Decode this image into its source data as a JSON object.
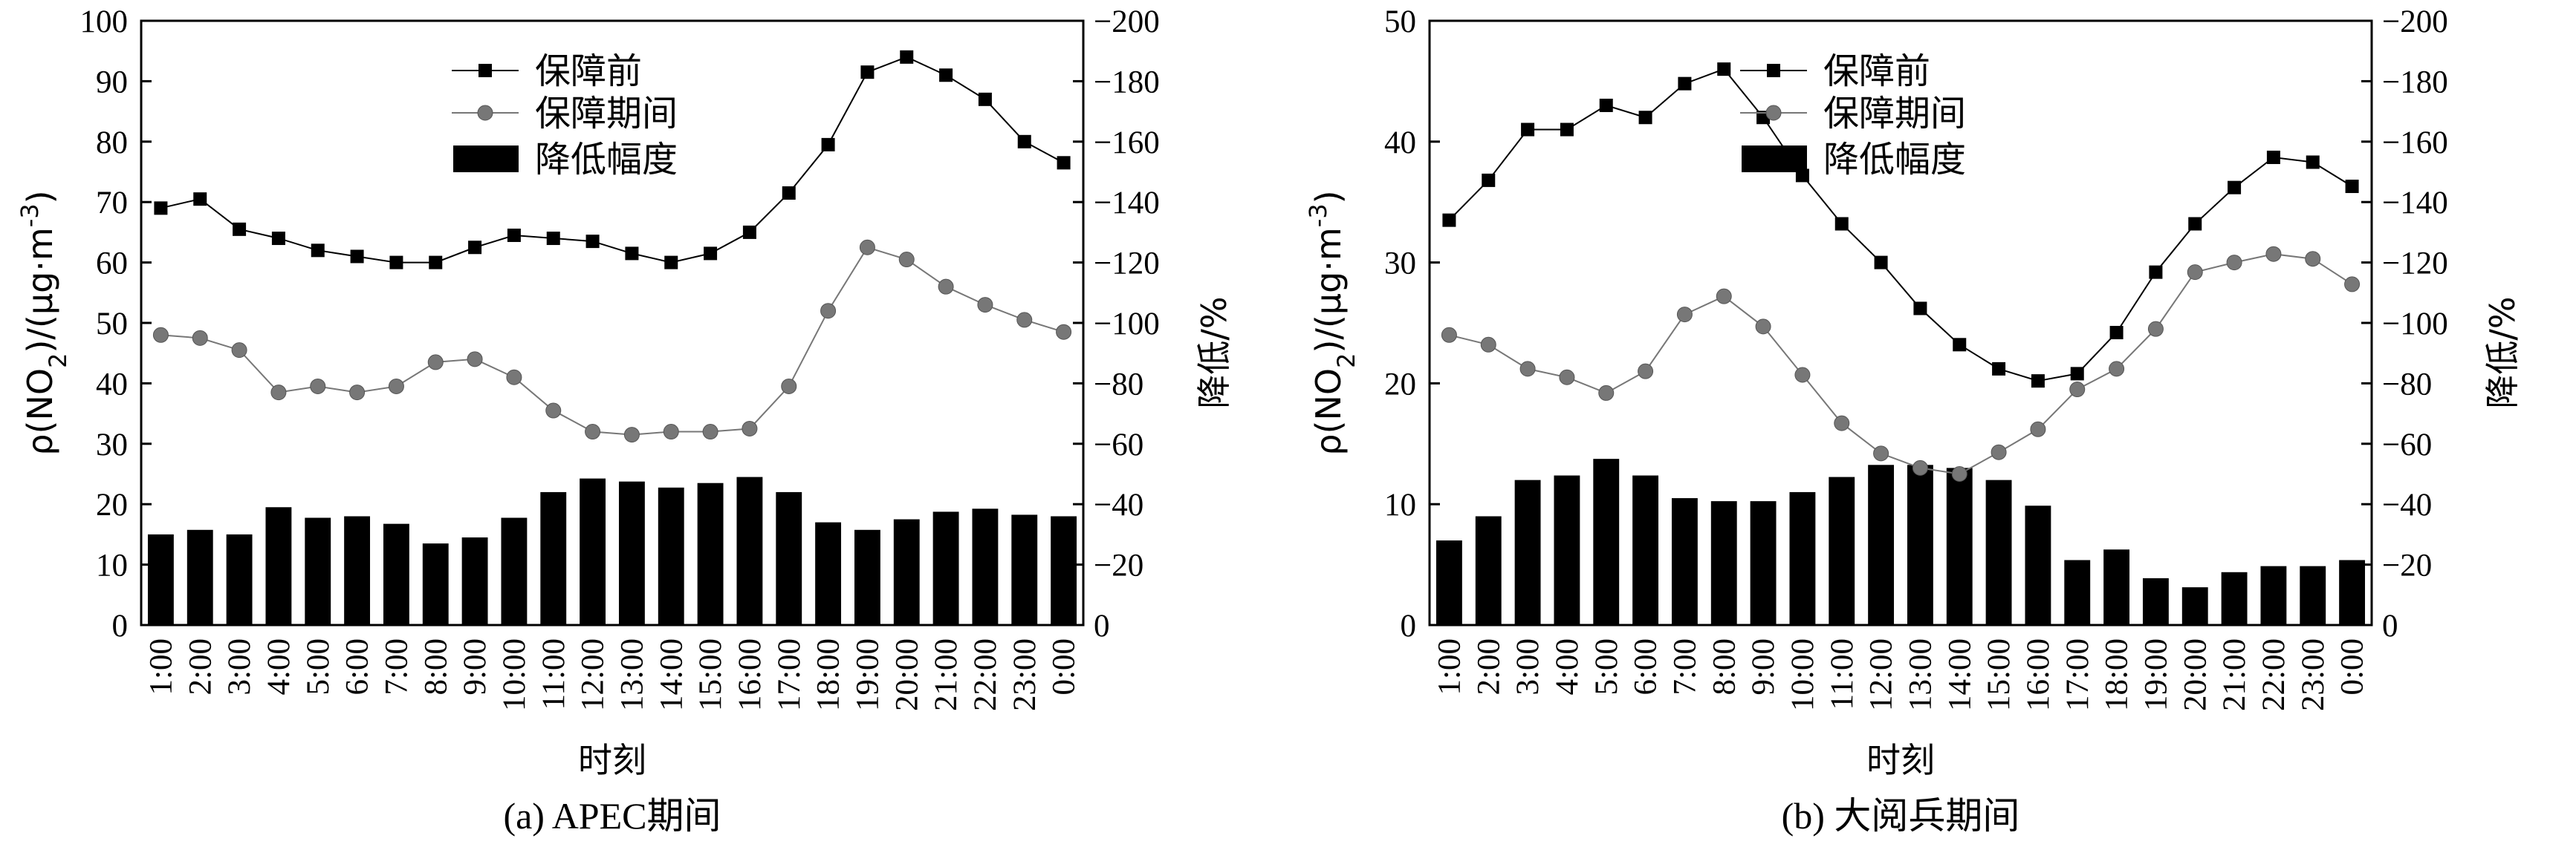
{
  "legend_labels": [
    "保障前",
    "保障期间",
    "降低幅度"
  ],
  "chart_data": [
    {
      "type": "bar",
      "caption": "(a) APEC期间",
      "xlabel": "时刻",
      "ylabel_left": "ρ(NO₂)/(μg·m⁻³)",
      "ylabel_right": "降低/%",
      "categories": [
        "1:00",
        "2:00",
        "3:00",
        "4:00",
        "5:00",
        "6:00",
        "7:00",
        "8:00",
        "9:00",
        "10:00",
        "11:00",
        "12:00",
        "13:00",
        "14:00",
        "15:00",
        "16:00",
        "17:00",
        "18:00",
        "19:00",
        "20:00",
        "21:00",
        "22:00",
        "23:00",
        "0:00"
      ],
      "ylim": [
        0,
        100
      ],
      "yticks": [
        0,
        10,
        20,
        30,
        40,
        50,
        60,
        70,
        80,
        90,
        100
      ],
      "y2lim": [
        0,
        -200
      ],
      "y2ticks": [
        0,
        -20,
        -40,
        -60,
        -80,
        -100,
        -120,
        -140,
        -160,
        -180,
        -200
      ],
      "series": [
        {
          "name": "保障前",
          "kind": "line",
          "marker": "square",
          "color": "#000000",
          "values": [
            69,
            70.5,
            65.5,
            64,
            62,
            61,
            60,
            60,
            62.5,
            64.5,
            64,
            63.5,
            61.5,
            60,
            61.5,
            65,
            71.5,
            79.5,
            91.5,
            94,
            91,
            87,
            80,
            76.5
          ]
        },
        {
          "name": "保障期间",
          "kind": "line",
          "marker": "circle",
          "color": "#777777",
          "values": [
            48,
            47.5,
            45.5,
            38.5,
            39.5,
            38.5,
            39.5,
            43.5,
            44,
            41,
            35.5,
            32,
            31.5,
            32,
            32,
            32.5,
            39.5,
            52,
            62.5,
            60.5,
            56,
            53,
            50.5,
            48.5
          ]
        },
        {
          "name": "降低幅度",
          "kind": "bar",
          "axis": "right",
          "color": "#000000",
          "values": [
            -30,
            -31.5,
            -30,
            -39,
            -35.5,
            -36,
            -33.5,
            -27,
            -29,
            -35.5,
            -44,
            -48.5,
            -47.5,
            -45.5,
            -47,
            -49,
            -44,
            -34,
            -31.5,
            -35,
            -37.5,
            -38.5,
            -36.5,
            -36
          ]
        }
      ]
    },
    {
      "type": "bar",
      "caption": "(b) 大阅兵期间",
      "xlabel": "时刻",
      "ylabel_left": "ρ(NO₂)/(μg·m⁻³)",
      "ylabel_right": "降低/%",
      "categories": [
        "1:00",
        "2:00",
        "3:00",
        "4:00",
        "5:00",
        "6:00",
        "7:00",
        "8:00",
        "9:00",
        "10:00",
        "11:00",
        "12:00",
        "13:00",
        "14:00",
        "15:00",
        "16:00",
        "17:00",
        "18:00",
        "19:00",
        "20:00",
        "21:00",
        "22:00",
        "23:00",
        "0:00"
      ],
      "ylim": [
        0,
        50
      ],
      "yticks": [
        0,
        10,
        20,
        30,
        40,
        50
      ],
      "y2lim": [
        0,
        -200
      ],
      "y2ticks": [
        0,
        -20,
        -40,
        -60,
        -80,
        -100,
        -120,
        -140,
        -160,
        -180,
        -200
      ],
      "series": [
        {
          "name": "保障前",
          "kind": "line",
          "marker": "square",
          "color": "#000000",
          "values": [
            33.5,
            36.8,
            41,
            41,
            43,
            42,
            44.8,
            46,
            42,
            37.2,
            33.2,
            30,
            26.2,
            23.2,
            21.2,
            20.2,
            20.8,
            24.2,
            29.2,
            33.2,
            36.2,
            38.7,
            38.3,
            36.3
          ]
        },
        {
          "name": "保障期间",
          "kind": "line",
          "marker": "circle",
          "color": "#777777",
          "values": [
            24,
            23.2,
            21.2,
            20.5,
            19.2,
            21,
            25.7,
            27.2,
            24.7,
            20.7,
            16.7,
            14.2,
            13,
            12.5,
            14.3,
            16.2,
            19.5,
            21.2,
            24.5,
            29.2,
            30,
            30.7,
            30.3,
            28.2
          ]
        },
        {
          "name": "降低幅度",
          "kind": "bar",
          "axis": "right",
          "color": "#000000",
          "values": [
            -28,
            -36,
            -48,
            -49.5,
            -55,
            -49.5,
            -42,
            -41,
            -41,
            -44,
            -49,
            -53,
            -53,
            -52,
            -48,
            -39.5,
            -21.5,
            -25,
            -15.5,
            -12.5,
            -17.5,
            -19.5,
            -19.5,
            -21.5
          ]
        }
      ]
    }
  ]
}
